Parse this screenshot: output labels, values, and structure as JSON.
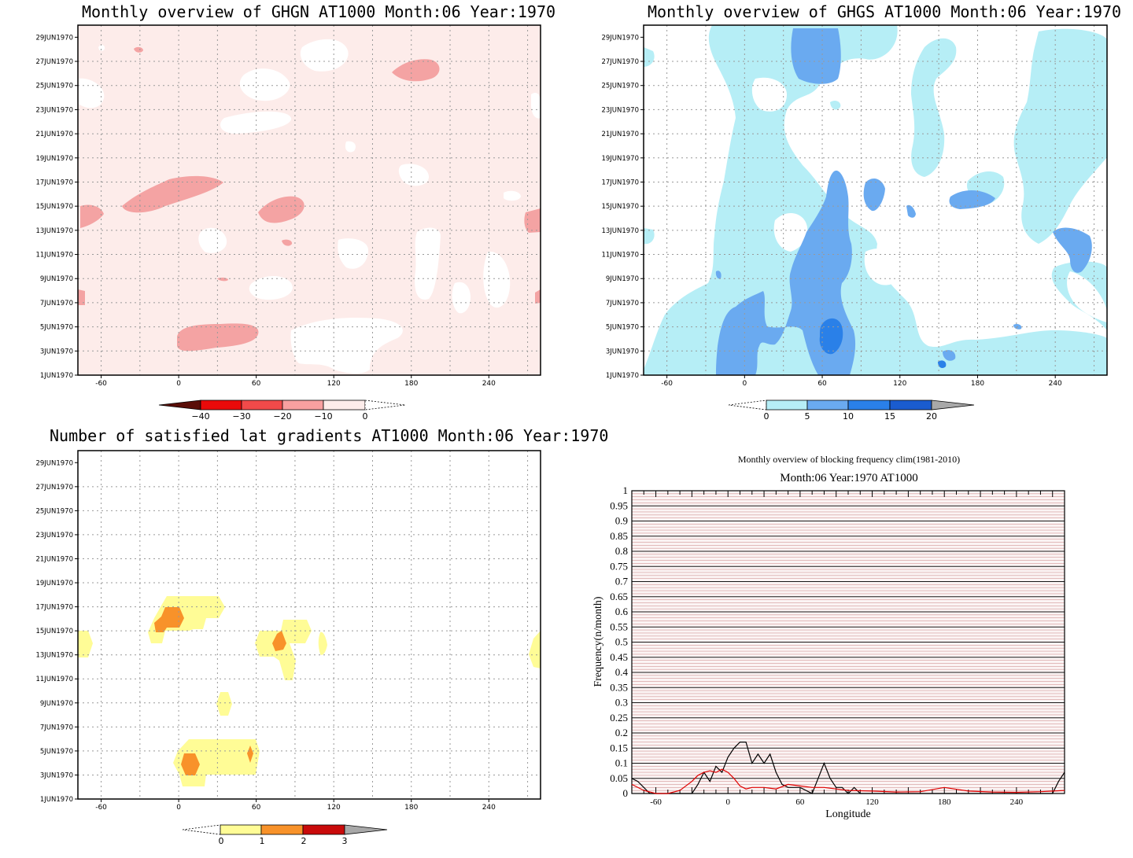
{
  "colors": {
    "ghgn_background": "#fdecea",
    "ghgs_light": "#b6eef6",
    "ghgs_mid": "#6aaaf0",
    "ghgs_dark": "#2a80e8",
    "ghgs_darkest": "#1a5ccf",
    "gradient_light": "#fffc96",
    "gradient_orange": "#f8922a",
    "gradient_red": "#c90a0a",
    "ghgn_reds": [
      "#5a0e08",
      "#ea0a0a",
      "#f14a4a",
      "#f8a0a0",
      "#fdecea"
    ],
    "grid": "#999999"
  },
  "dates": [
    "29JUN1970",
    "27JUN1970",
    "25JUN1970",
    "23JUN1970",
    "21JUN1970",
    "19JUN1970",
    "17JUN1970",
    "15JUN1970",
    "13JUN1970",
    "11JUN1970",
    "9JUN1970",
    "7JUN1970",
    "5JUN1970",
    "3JUN1970",
    "1JUN1970"
  ],
  "lon_ticks": [
    "-60",
    "0",
    "60",
    "120",
    "180",
    "240"
  ],
  "panels": {
    "ghgn": {
      "title": "Monthly overview of GHGN AT1000 Month:06 Year:1970",
      "colorbar_labels": [
        "−40",
        "−30",
        "−20",
        "−10",
        "0"
      ]
    },
    "ghgs": {
      "title": "Monthly overview of GHGS AT1000 Month:06 Year:1970",
      "colorbar_labels": [
        "0",
        "5",
        "10",
        "15",
        "20"
      ]
    },
    "gradients": {
      "title": "Number of satisfied lat gradients AT1000 Month:06 Year:1970",
      "colorbar_labels": [
        "0",
        "1",
        "2",
        "3"
      ]
    }
  },
  "chart_data": [
    {
      "type": "heatmap",
      "title": "Monthly overview of GHGN AT1000 Month:06 Year:1970",
      "x_axis": "longitude",
      "xlim": [
        -78,
        280
      ],
      "y_axis": "date",
      "ylim": [
        "1JUN1970",
        "30JUN1970"
      ],
      "levels": [
        -40,
        -30,
        -20,
        -10,
        0
      ]
    },
    {
      "type": "heatmap",
      "title": "Monthly overview of GHGS AT1000 Month:06 Year:1970",
      "x_axis": "longitude",
      "xlim": [
        -78,
        280
      ],
      "y_axis": "date",
      "ylim": [
        "1JUN1970",
        "30JUN1970"
      ],
      "levels": [
        0,
        5,
        10,
        15,
        20
      ]
    },
    {
      "type": "heatmap",
      "title": "Number of satisfied lat gradients AT1000 Month:06 Year:1970",
      "x_axis": "longitude",
      "xlim": [
        -78,
        280
      ],
      "y_axis": "date",
      "ylim": [
        "1JUN1970",
        "30JUN1970"
      ],
      "levels": [
        0,
        1,
        2,
        3
      ]
    },
    {
      "type": "line",
      "title": "Monthly overview of blocking frequency clim(1981-2010)",
      "subtitle": "Month:06 Year:1970  AT1000",
      "xlabel": "Longitude",
      "ylabel": "Frequency(n/month)",
      "xlim": [
        -80,
        280
      ],
      "ylim": [
        0,
        1
      ],
      "x_ticks": [
        "-60",
        "0",
        "60",
        "120",
        "180",
        "240"
      ],
      "y_ticks": [
        "0",
        "0.05",
        "0.1",
        "0.15",
        "0.2",
        "0.25",
        "0.3",
        "0.35",
        "0.4",
        "0.45",
        "0.5",
        "0.55",
        "0.6",
        "0.65",
        "0.7",
        "0.75",
        "0.8",
        "0.85",
        "0.9",
        "0.95",
        "1"
      ],
      "series": [
        {
          "color": "#000000",
          "x": [
            -80,
            -75,
            -70,
            -65,
            -60,
            -50,
            -40,
            -30,
            -25,
            -20,
            -15,
            -10,
            -5,
            0,
            5,
            10,
            15,
            20,
            25,
            30,
            35,
            40,
            45,
            50,
            60,
            70,
            75,
            80,
            85,
            90,
            95,
            100,
            105,
            110,
            115,
            120,
            180,
            240,
            270,
            275,
            280
          ],
          "values": [
            0.05,
            0.04,
            0.02,
            0.0,
            0.0,
            0.0,
            0.0,
            0.0,
            0.03,
            0.07,
            0.04,
            0.09,
            0.07,
            0.12,
            0.15,
            0.17,
            0.17,
            0.1,
            0.13,
            0.1,
            0.13,
            0.07,
            0.03,
            0.02,
            0.02,
            0.0,
            0.05,
            0.1,
            0.05,
            0.02,
            0.02,
            0.0,
            0.02,
            0.0,
            0.0,
            0.0,
            0.0,
            0.0,
            0.0,
            0.04,
            0.07
          ]
        },
        {
          "color": "#e00000",
          "x": [
            -80,
            -70,
            -60,
            -50,
            -40,
            -30,
            -25,
            -20,
            -15,
            -10,
            -5,
            0,
            5,
            10,
            15,
            20,
            30,
            40,
            50,
            60,
            70,
            80,
            90,
            100,
            120,
            140,
            160,
            180,
            200,
            220,
            240,
            260,
            280
          ],
          "values": [
            0.03,
            0.01,
            0.0,
            0.0,
            0.01,
            0.04,
            0.06,
            0.07,
            0.075,
            0.07,
            0.08,
            0.07,
            0.05,
            0.025,
            0.015,
            0.02,
            0.02,
            0.015,
            0.03,
            0.025,
            0.02,
            0.02,
            0.015,
            0.01,
            0.008,
            0.005,
            0.006,
            0.02,
            0.008,
            0.005,
            0.004,
            0.006,
            0.01
          ]
        }
      ]
    }
  ]
}
